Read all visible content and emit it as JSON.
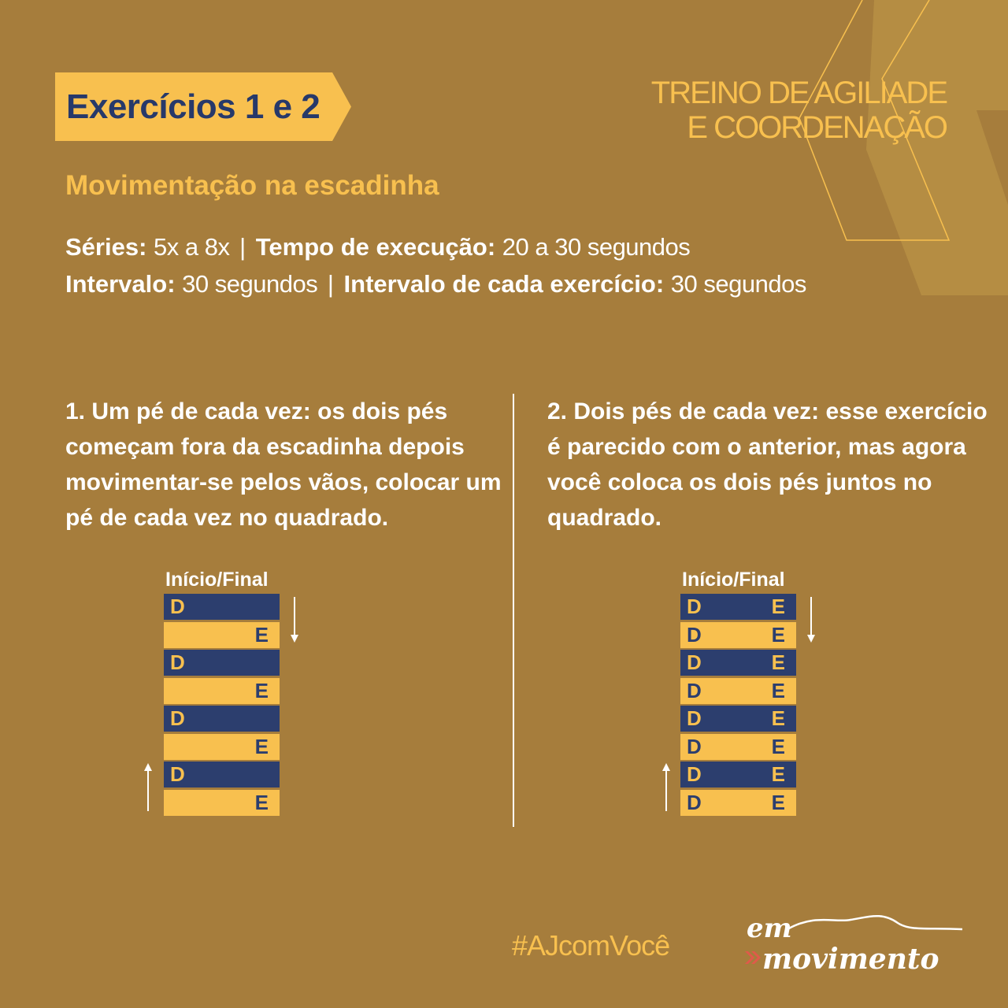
{
  "header": {
    "badge_title": "Exercícios 1 e 2",
    "brand_line1": "TREINO DE AGILIADE",
    "brand_line2": "E COORDENAÇÃO"
  },
  "subtitle": "Movimentação na escadinha",
  "meta": {
    "series_label": "Séries:",
    "series_value": "5x a 8x",
    "time_label": "Tempo de execução:",
    "time_value": "20 a 30 segundos",
    "interval_label": "Intervalo:",
    "interval_value": "30 segundos",
    "ex_interval_label": "Intervalo de cada exercício:",
    "ex_interval_value": "30 segundos",
    "separator": "|"
  },
  "exercises": [
    {
      "description": "1. Um pé de cada vez: os dois pés começam fora da escadinha depois movimentar-se pelos vãos, colocar um pé de cada vez no quadrado.",
      "ladder_label": "Início/Final",
      "rungs": [
        {
          "d": "D",
          "e": ""
        },
        {
          "d": "",
          "e": "E"
        },
        {
          "d": "D",
          "e": ""
        },
        {
          "d": "",
          "e": "E"
        },
        {
          "d": "D",
          "e": ""
        },
        {
          "d": "",
          "e": "E"
        },
        {
          "d": "D",
          "e": ""
        },
        {
          "d": "",
          "e": "E"
        }
      ]
    },
    {
      "description": "2. Dois pés de cada vez: esse exercício é parecido com o anterior, mas agora você coloca os dois pés juntos no quadrado.",
      "ladder_label": "Início/Final",
      "rungs": [
        {
          "d": "D",
          "e": "E"
        },
        {
          "d": "D",
          "e": "E"
        },
        {
          "d": "D",
          "e": "E"
        },
        {
          "d": "D",
          "e": "E"
        },
        {
          "d": "D",
          "e": "E"
        },
        {
          "d": "D",
          "e": "E"
        },
        {
          "d": "D",
          "e": "E"
        },
        {
          "d": "D",
          "e": "E"
        }
      ]
    }
  ],
  "footer": {
    "hashtag": "#AJcomVocê",
    "logo_line1": "em",
    "logo_line2": "movimento"
  },
  "colors": {
    "background": "#a67d3c",
    "accent_yellow": "#f8c04f",
    "navy": "#2c3e6e"
  }
}
